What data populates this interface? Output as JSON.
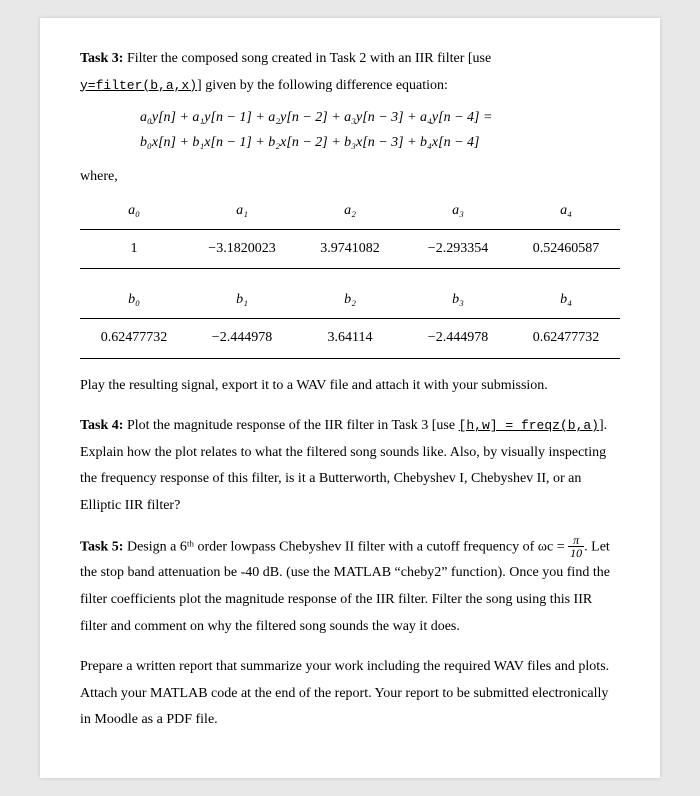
{
  "task3": {
    "title": "Task 3:",
    "intro1": " Filter the composed song created in Task 2 with an IIR filter [use ",
    "code": "y=filter(b,a,x)",
    "intro2": "] given by the following difference equation:",
    "eq1": "a₀y[n] + a₁y[n − 1] + a₂y[n − 2] + a₃y[n − 3] + a₄y[n − 4] =",
    "eq2": "b₀x[n] + b₁x[n − 1] + b₂x[n − 2] + b₃x[n − 3] + b₄x[n − 4]",
    "where": "where,",
    "a_headers": [
      "a₀",
      "a₁",
      "a₂",
      "a₃",
      "a₄"
    ],
    "a_values": [
      "1",
      "−3.1820023",
      "3.9741082",
      "−2.293354",
      "0.52460587"
    ],
    "b_headers": [
      "b₀",
      "b₁",
      "b₂",
      "b₃",
      "b₄"
    ],
    "b_values": [
      "0.62477732",
      "−2.444978",
      "3.64114",
      "−2.444978",
      "0.62477732"
    ],
    "post": "Play the resulting signal, export it to a WAV file and attach it with your submission."
  },
  "task4": {
    "title": "Task 4:",
    "line1a": " Plot the magnitude response of the IIR filter in Task 3 [use ",
    "code": "[h,w] = freqz(b,a)",
    "line1b": "]. Explain how the plot relates to what the filtered song sounds like. Also, by visually inspecting the frequency response of this filter, is it a Butterworth, Chebyshev I, Chebyshev II, or an Elliptic IIR filter?"
  },
  "task5": {
    "title": "Task 5:",
    "line1": " Design a 6ᵗʰ order lowpass Chebyshev II filter with a cutoff frequency of ωc = ",
    "frac_top": "π",
    "frac_bot": "10",
    "line1b": ". Let the stop band attenuation be -40 dB. (use the MATLAB “cheby2” function). Once you find the filter coefficients plot the magnitude response of the IIR filter. Filter the song using this IIR filter and comment on why the filtered song sounds the way it does."
  },
  "closing": {
    "p1": "Prepare a written report that summarize your work including the required WAV files and plots. Attach your MATLAB code at the end of the report. Your report to be submitted electronically in Moodle as a PDF file."
  }
}
